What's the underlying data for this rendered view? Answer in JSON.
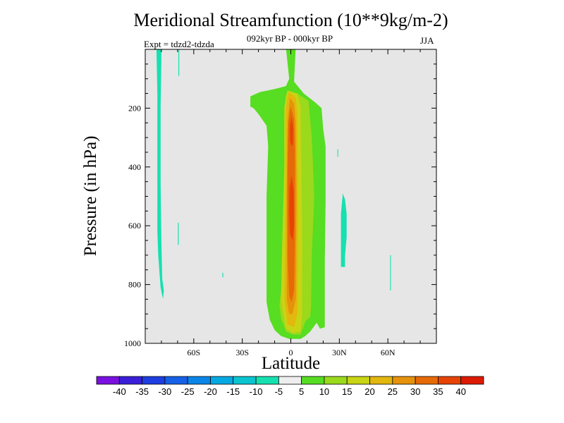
{
  "chart_data": {
    "type": "contour",
    "title": "Meridional Streamfunction (10**9kg/m-2)",
    "subtitle": "092kyr BP - 000kyr BP",
    "left_label": "Expt = tdzd2-tdzda",
    "right_label": "JJA",
    "xlabel": "Latitude",
    "ylabel": "Pressure (in hPa)",
    "xlim": [
      -90,
      90
    ],
    "ylim": [
      0,
      1000
    ],
    "y_reversed": true,
    "x_ticks": [
      {
        "value": -60,
        "label": "60S"
      },
      {
        "value": -30,
        "label": "30S"
      },
      {
        "value": 0,
        "label": "0"
      },
      {
        "value": 30,
        "label": "30N"
      },
      {
        "value": 60,
        "label": "60N"
      }
    ],
    "y_ticks": [
      {
        "value": 200,
        "label": "200"
      },
      {
        "value": 400,
        "label": "400"
      },
      {
        "value": 600,
        "label": "600"
      },
      {
        "value": 800,
        "label": "800"
      },
      {
        "value": 1000,
        "label": "1000"
      }
    ],
    "background_color": "#e6e6e6",
    "colorbar": {
      "boundaries": [
        -40,
        -35,
        -30,
        -25,
        -20,
        -15,
        -10,
        -5,
        5,
        10,
        15,
        20,
        25,
        30,
        35,
        40
      ],
      "colors": [
        "#7a10e0",
        "#3a1ed8",
        "#1d3ee0",
        "#1560e6",
        "#0b86e8",
        "#06a8e2",
        "#0ac4d0",
        "#16e0b0",
        "#eeeeee",
        "#57dd22",
        "#9ad91c",
        "#c8d414",
        "#e2b70e",
        "#e6920a",
        "#e66a07",
        "#e64305",
        "#dd1a04"
      ]
    },
    "regions": [
      {
        "name": "sh-high-lat-negative-cell",
        "value_range": [
          -10,
          -5
        ],
        "color": "#16e0b0",
        "points": [
          [
            -83,
            -5
          ],
          [
            -80,
            -5
          ],
          [
            -80,
            40
          ],
          [
            -80.5,
            200
          ],
          [
            -80.5,
            450
          ],
          [
            -80,
            650
          ],
          [
            -79.5,
            780
          ],
          [
            -78.5,
            820
          ],
          [
            -79,
            850
          ],
          [
            -80.5,
            810
          ],
          [
            -82,
            700
          ],
          [
            -82.5,
            620
          ],
          [
            -82.5,
            400
          ],
          [
            -82.5,
            150
          ],
          [
            -83,
            20
          ]
        ]
      },
      {
        "name": "sh-midlat-negative-strip",
        "value_range": [
          -10,
          -5
        ],
        "color": "#16e0b0",
        "points": [
          [
            -69.5,
            -5
          ],
          [
            -69,
            -5
          ],
          [
            -69,
            90
          ],
          [
            -69.5,
            90
          ]
        ]
      },
      {
        "name": "sh-midlat-negative-speck",
        "value_range": [
          -10,
          -5
        ],
        "color": "#16e0b0",
        "points": [
          [
            -69.8,
            590
          ],
          [
            -69.3,
            590
          ],
          [
            -69.3,
            665
          ],
          [
            -69.8,
            665
          ]
        ]
      },
      {
        "name": "sh-subtropic-negative-dot",
        "value_range": [
          -10,
          -5
        ],
        "color": "#16e0b0",
        "points": [
          [
            -42.3,
            760
          ],
          [
            -41.8,
            760
          ],
          [
            -41.8,
            775
          ],
          [
            -42.3,
            775
          ]
        ]
      },
      {
        "name": "nh-subtropic-negative-cell",
        "value_range": [
          -10,
          -5
        ],
        "color": "#16e0b0",
        "points": [
          [
            32,
            490
          ],
          [
            33.5,
            510
          ],
          [
            34.5,
            560
          ],
          [
            34.5,
            640
          ],
          [
            33.5,
            700
          ],
          [
            33.5,
            740
          ],
          [
            31,
            740
          ],
          [
            31,
            700
          ],
          [
            31,
            560
          ],
          [
            32,
            500
          ]
        ]
      },
      {
        "name": "nh-subtropic-negative-dot",
        "value_range": [
          -10,
          -5
        ],
        "color": "#16e0b0",
        "points": [
          [
            28.8,
            340
          ],
          [
            29.3,
            340
          ],
          [
            29.3,
            365
          ],
          [
            28.8,
            365
          ]
        ]
      },
      {
        "name": "nh-midlat-negative-strip",
        "value_range": [
          -10,
          -5
        ],
        "color": "#16e0b0",
        "points": [
          [
            61.4,
            700
          ],
          [
            61.9,
            700
          ],
          [
            61.9,
            820
          ],
          [
            61.4,
            820
          ]
        ]
      },
      {
        "name": "hadley-cell-5-10",
        "value_range": [
          5,
          10
        ],
        "color": "#57dd22",
        "points": [
          [
            -3,
            -5
          ],
          [
            3,
            -5
          ],
          [
            2,
            110
          ],
          [
            8,
            150
          ],
          [
            15,
            180
          ],
          [
            19,
            200
          ],
          [
            20,
            270
          ],
          [
            21.5,
            330
          ],
          [
            21.5,
            520
          ],
          [
            21,
            720
          ],
          [
            21,
            900
          ],
          [
            21,
            945
          ],
          [
            18,
            950
          ],
          [
            16,
            930
          ],
          [
            12,
            960
          ],
          [
            9,
            975
          ],
          [
            6,
            985
          ],
          [
            -1,
            985
          ],
          [
            -6,
            975
          ],
          [
            -10,
            955
          ],
          [
            -13,
            920
          ],
          [
            -15,
            860
          ],
          [
            -15,
            500
          ],
          [
            -14,
            330
          ],
          [
            -15,
            260
          ],
          [
            -20,
            220
          ],
          [
            -23,
            200
          ],
          [
            -25,
            195
          ],
          [
            -25,
            160
          ],
          [
            -23,
            155
          ],
          [
            -19,
            145
          ],
          [
            -10,
            135
          ],
          [
            -3,
            125
          ],
          [
            -1,
            100
          ],
          [
            -3,
            -5
          ]
        ]
      },
      {
        "name": "hadley-cell-10-15",
        "value_range": [
          10,
          15
        ],
        "color": "#9ad91c",
        "points": [
          [
            -2,
            140
          ],
          [
            4,
            150
          ],
          [
            11,
            175
          ],
          [
            13,
            300
          ],
          [
            14.5,
            500
          ],
          [
            13,
            700
          ],
          [
            12.5,
            880
          ],
          [
            12,
            910
          ],
          [
            9,
            925
          ],
          [
            6,
            970
          ],
          [
            1,
            970
          ],
          [
            -3,
            960
          ],
          [
            -6,
            915
          ],
          [
            -7,
            870
          ],
          [
            -6,
            820
          ],
          [
            -5,
            600
          ],
          [
            -4,
            400
          ],
          [
            -4,
            200
          ],
          [
            -3,
            160
          ]
        ]
      },
      {
        "name": "hadley-cell-15-20",
        "value_range": [
          15,
          20
        ],
        "color": "#c8d414",
        "points": [
          [
            -2,
            140
          ],
          [
            4,
            150
          ],
          [
            6,
            190
          ],
          [
            7,
            600
          ],
          [
            7,
            900
          ],
          [
            6,
            960
          ],
          [
            1,
            965
          ],
          [
            -3,
            950
          ],
          [
            -5,
            890
          ],
          [
            -6,
            850
          ],
          [
            -5,
            600
          ],
          [
            -4,
            400
          ],
          [
            -4,
            200
          ],
          [
            -3,
            160
          ]
        ]
      },
      {
        "name": "hadley-cell-20-25",
        "value_range": [
          20,
          25
        ],
        "color": "#e2b70e",
        "points": [
          [
            -1,
            145
          ],
          [
            3,
            165
          ],
          [
            4,
            220
          ],
          [
            4.5,
            600
          ],
          [
            4,
            900
          ],
          [
            2,
            945
          ],
          [
            -2,
            935
          ],
          [
            -3,
            890
          ],
          [
            -4,
            850
          ],
          [
            -3.5,
            600
          ],
          [
            -3,
            400
          ],
          [
            -3,
            200
          ],
          [
            -2,
            165
          ]
        ]
      },
      {
        "name": "hadley-cell-25-30",
        "value_range": [
          25,
          30
        ],
        "color": "#e6920a",
        "points": [
          [
            -0.5,
            165
          ],
          [
            2,
            185
          ],
          [
            3,
            250
          ],
          [
            3.5,
            500
          ],
          [
            3,
            850
          ],
          [
            1,
            900
          ],
          [
            -1,
            900
          ],
          [
            -2.5,
            850
          ],
          [
            -2.5,
            500
          ],
          [
            -2,
            250
          ],
          [
            -1,
            190
          ]
        ]
      },
      {
        "name": "hadley-cell-30-35",
        "value_range": [
          30,
          35
        ],
        "color": "#e66a07",
        "points": [
          [
            0,
            195
          ],
          [
            2,
            240
          ],
          [
            2.5,
            340
          ],
          [
            2.5,
            650
          ],
          [
            2,
            820
          ],
          [
            0.5,
            860
          ],
          [
            -1,
            840
          ],
          [
            -2,
            700
          ],
          [
            -2,
            400
          ],
          [
            -1.5,
            250
          ],
          [
            -0.5,
            205
          ]
        ]
      },
      {
        "name": "hadley-cell-35-40",
        "value_range": [
          35,
          40
        ],
        "color": "#e64305",
        "points": [
          [
            0.5,
            230
          ],
          [
            1.5,
            270
          ],
          [
            1.3,
            320
          ],
          [
            0.5,
            330
          ],
          [
            -0.5,
            310
          ],
          [
            -0.5,
            260
          ]
        ]
      },
      {
        "name": "hadley-cell-35-40-lower",
        "value_range": [
          35,
          40
        ],
        "color": "#e64305",
        "points": [
          [
            0.5,
            430
          ],
          [
            1.8,
            480
          ],
          [
            2,
            600
          ],
          [
            1.2,
            650
          ],
          [
            -0.5,
            630
          ],
          [
            -1,
            560
          ],
          [
            -0.8,
            470
          ]
        ]
      }
    ]
  }
}
